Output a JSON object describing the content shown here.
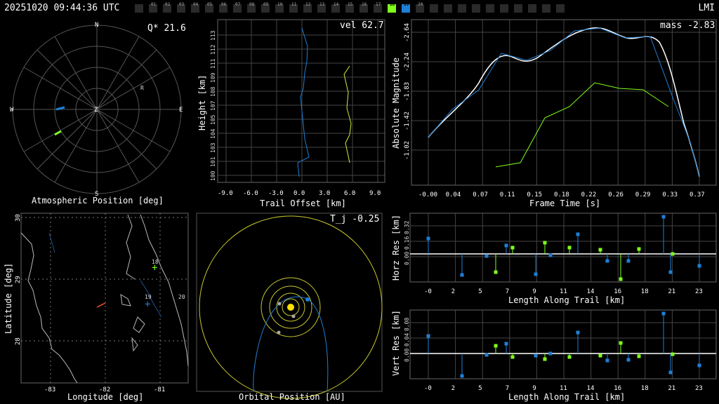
{
  "topbar": {
    "time": "20251020 09:44:36 UTC",
    "station": "LMI",
    "chips": [
      "",
      "01",
      "02",
      "03",
      "04",
      "05",
      "06",
      "07",
      "08",
      "09",
      "10",
      "11",
      "12",
      "13",
      "14",
      "15",
      "16",
      "17",
      "18",
      "19",
      "20",
      "",
      "",
      "",
      "",
      "",
      "",
      "",
      "",
      "",
      ""
    ],
    "chip_green_index": 18,
    "chip_blue_index": 19
  },
  "colors": {
    "station1": "#7fff1a",
    "station2": "#1e7fd6",
    "orbit": "#c8c830"
  },
  "polar": {
    "title": "Atmospheric Position [deg]",
    "corner": "Q* 21.6",
    "dirs": [
      "N",
      "E",
      "S",
      "W",
      "Z",
      "R"
    ]
  },
  "trail": {
    "corner": "vel 62.7",
    "xlabel": "Trail Offset [km]",
    "ylabel": "Height [km]",
    "xticks": [
      "-9.0",
      "-6.0",
      "-3.0",
      "0.0",
      "3.0",
      "6.0",
      "9.0"
    ],
    "yticks": [
      "100",
      "101",
      "103",
      "104",
      "105",
      "107",
      "108",
      "109",
      "111",
      "112",
      "113"
    ]
  },
  "mag": {
    "corner": "mass -2.83",
    "xlabel": "Frame Time [s]",
    "ylabel": "Absolute Magnitude",
    "xticks": [
      "-0.00",
      "0.04",
      "0.07",
      "0.11",
      "0.15",
      "0.18",
      "0.22",
      "0.26",
      "0.29",
      "0.33",
      "0.37"
    ],
    "yticks": [
      "-2.64",
      "-2.24",
      "-1.83",
      "-1.42",
      "-1.02"
    ]
  },
  "map": {
    "xlabel": "Longitude [deg]",
    "ylabel": "Latitude [deg]",
    "xticks": [
      "-83",
      "-82",
      "-81"
    ],
    "yticks": [
      "30",
      "29",
      "28"
    ],
    "station_labels": [
      "18",
      "19",
      "20"
    ]
  },
  "orbit": {
    "corner": "T_j -0.25",
    "xlabel": "Orbital Position [AU]"
  },
  "horz": {
    "xlabel": "Length Along Trail [km]",
    "ylabel": "Horz Res [km]",
    "xticks": [
      "-0",
      "2",
      "5",
      "7",
      "9",
      "11",
      "14",
      "16",
      "18",
      "21",
      "23"
    ],
    "yticks": [
      "0.32",
      "0.16",
      "0.00"
    ]
  },
  "vert": {
    "xlabel": "Length Along Trail [km]",
    "ylabel": "Vert Res [km]",
    "xticks": [
      "-0",
      "2",
      "5",
      "7",
      "9",
      "11",
      "14",
      "16",
      "18",
      "21",
      "23"
    ],
    "yticks": [
      "0.08",
      "0.04",
      "0.00"
    ]
  }
}
